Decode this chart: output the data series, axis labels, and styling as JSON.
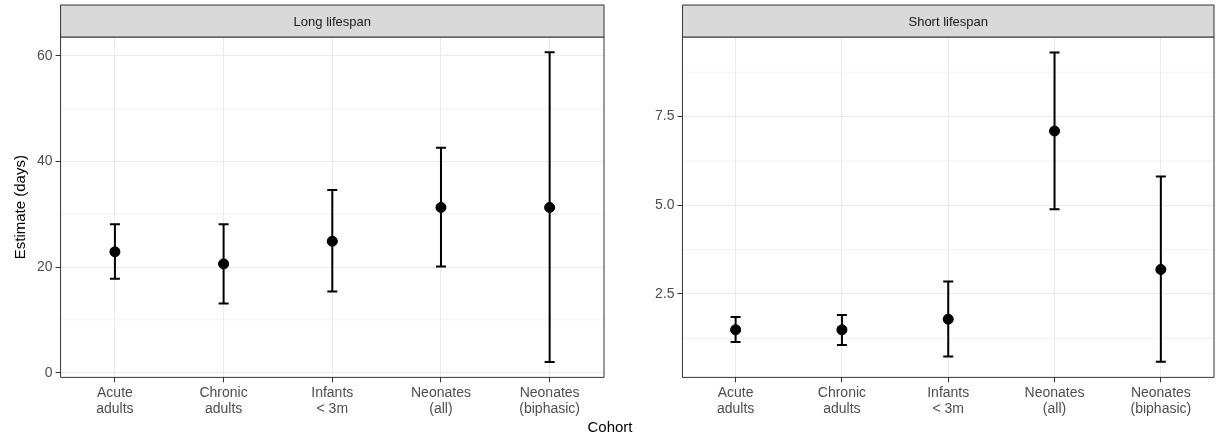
{
  "chart_data": [
    {
      "type": "scatter",
      "title": "Long lifespan",
      "xlabel": "Cohort",
      "ylabel": "Estimate (days)",
      "categories": [
        "Acute\nadults",
        "Chronic\nadults",
        "Infants\n< 3m",
        "Neonates\n(all)",
        "Neonates\n(biphasic)"
      ],
      "series": [
        {
          "color": "#000000",
          "values": [
            22.9,
            20.6,
            24.9,
            31.3,
            31.3
          ],
          "errors": [
            [
              17.8,
              28.1
            ],
            [
              13.1,
              28.1
            ],
            [
              15.4,
              34.6
            ],
            [
              20.1,
              42.6
            ],
            [
              2.0,
              60.7
            ]
          ]
        }
      ],
      "ylim": [
        -0.9,
        63.6
      ],
      "yticks": [
        0,
        20,
        40,
        60
      ],
      "grid": true,
      "marker": "circle"
    },
    {
      "type": "scatter",
      "title": "Short lifespan",
      "categories": [
        "Acute\nadults",
        "Chronic\nadults",
        "Infants\n< 3m",
        "Neonates\n(all)",
        "Neonates\n(biphasic)"
      ],
      "series": [
        {
          "color": "#000000",
          "values": [
            1.49,
            1.49,
            1.79,
            7.09,
            3.19
          ],
          "errors": [
            [
              1.15,
              1.85
            ],
            [
              1.06,
              1.91
            ],
            [
              0.74,
              2.85
            ],
            [
              4.89,
              9.3
            ],
            [
              0.59,
              5.81
            ]
          ]
        }
      ],
      "ylim": [
        0.15,
        9.74
      ],
      "yticks": [
        {
          "value": 2.5,
          "label": "2.5"
        },
        {
          "value": 5,
          "label": "5.0"
        },
        {
          "value": 7.5,
          "label": "7.5"
        }
      ],
      "grid": true,
      "marker": "circle"
    }
  ]
}
